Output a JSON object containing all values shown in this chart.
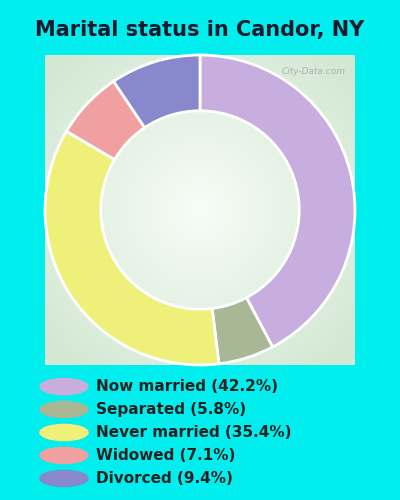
{
  "title": "Marital status in Candor, NY",
  "background_color": "#00EEEE",
  "slices": [
    {
      "label": "Now married (42.2%)",
      "value": 42.2,
      "color": "#c8aede"
    },
    {
      "label": "Separated (5.8%)",
      "value": 5.8,
      "color": "#a8b896"
    },
    {
      "label": "Never married (35.4%)",
      "value": 35.4,
      "color": "#eef07a"
    },
    {
      "label": "Widowed (7.1%)",
      "value": 7.1,
      "color": "#f0a0a0"
    },
    {
      "label": "Divorced (9.4%)",
      "value": 9.4,
      "color": "#8888cc"
    }
  ],
  "legend_colors": [
    "#c8aede",
    "#a8b896",
    "#eef07a",
    "#f0a0a0",
    "#8888cc"
  ],
  "legend_labels": [
    "Now married (42.2%)",
    "Separated (5.8%)",
    "Never married (35.4%)",
    "Widowed (7.1%)",
    "Divorced (9.4%)"
  ],
  "title_fontsize": 15,
  "legend_fontsize": 11,
  "donut_width": 0.45,
  "startangle": 90
}
